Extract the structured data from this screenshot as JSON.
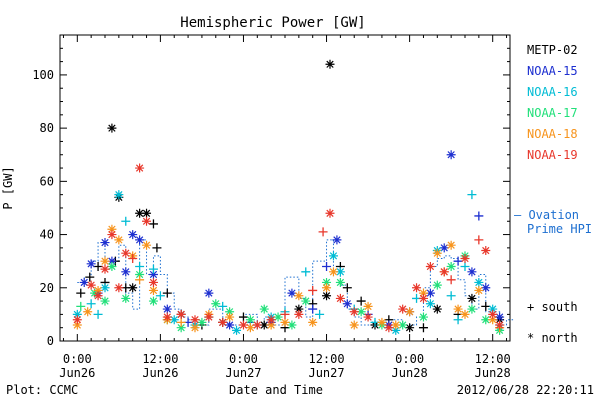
{
  "chart_data": {
    "type": "scatter",
    "title": "Hemispheric Power [GW]",
    "ylabel": "P [GW]",
    "xlabel": "Date and Time",
    "ylim": [
      0,
      115
    ],
    "yticks": [
      0,
      20,
      40,
      60,
      80,
      100
    ],
    "x_range_hours": [
      -2.5,
      62.5
    ],
    "x_ticks": [
      {
        "h": 0,
        "time": "0:00",
        "date": "Jun26"
      },
      {
        "h": 12,
        "time": "12:00",
        "date": "Jun26"
      },
      {
        "h": 24,
        "time": "0:00",
        "date": "Jun27"
      },
      {
        "h": 36,
        "time": "12:00",
        "date": "Jun27"
      },
      {
        "h": 48,
        "time": "0:00",
        "date": "Jun28"
      },
      {
        "h": 60,
        "time": "12:00",
        "date": "Jun28"
      }
    ],
    "series": [
      {
        "name": "METP-02",
        "color": "#000000",
        "points": [
          [
            0.5,
            18,
            "s"
          ],
          [
            1.8,
            24,
            "s"
          ],
          [
            3,
            28,
            "s"
          ],
          [
            4,
            22,
            "s"
          ],
          [
            5,
            80,
            "n"
          ],
          [
            5.5,
            30,
            "s"
          ],
          [
            6,
            54,
            "n"
          ],
          [
            7,
            20,
            "s"
          ],
          [
            8,
            20,
            "n"
          ],
          [
            9,
            48,
            "n"
          ],
          [
            10,
            48,
            "n"
          ],
          [
            11,
            44,
            "s"
          ],
          [
            11.5,
            35,
            "s"
          ],
          [
            13,
            18,
            "s"
          ],
          [
            15,
            10,
            "n"
          ],
          [
            18,
            6,
            "s"
          ],
          [
            21,
            7,
            "n"
          ],
          [
            24,
            9,
            "s"
          ],
          [
            27,
            6,
            "n"
          ],
          [
            30,
            5,
            "s"
          ],
          [
            32,
            12,
            "n"
          ],
          [
            34,
            14,
            "s"
          ],
          [
            36,
            17,
            "n"
          ],
          [
            36.5,
            104,
            "n"
          ],
          [
            38,
            28,
            "s"
          ],
          [
            39,
            20,
            "s"
          ],
          [
            41,
            15,
            "s"
          ],
          [
            43,
            6,
            "n"
          ],
          [
            45,
            8,
            "s"
          ],
          [
            48,
            5,
            "n"
          ],
          [
            50,
            5,
            "s"
          ],
          [
            52,
            12,
            "n"
          ],
          [
            55,
            10,
            "s"
          ],
          [
            57,
            16,
            "n"
          ],
          [
            59,
            13,
            "s"
          ],
          [
            61,
            8,
            "n"
          ]
        ]
      },
      {
        "name": "NOAA-15",
        "color": "#1d2fd0",
        "points": [
          [
            1,
            22,
            "n"
          ],
          [
            2,
            29,
            "n"
          ],
          [
            3,
            18,
            "n"
          ],
          [
            4,
            37,
            "n"
          ],
          [
            5,
            30,
            "n"
          ],
          [
            7,
            26,
            "n"
          ],
          [
            8,
            40,
            "n"
          ],
          [
            9,
            38,
            "n"
          ],
          [
            11,
            25,
            "n"
          ],
          [
            13,
            12,
            "n"
          ],
          [
            16,
            7,
            "s"
          ],
          [
            19,
            18,
            "n"
          ],
          [
            22,
            6,
            "n"
          ],
          [
            25,
            7,
            "s"
          ],
          [
            28,
            7,
            "n"
          ],
          [
            31,
            18,
            "n"
          ],
          [
            34,
            12,
            "s"
          ],
          [
            36,
            28,
            "s"
          ],
          [
            37.5,
            38,
            "n"
          ],
          [
            39,
            14,
            "n"
          ],
          [
            42,
            10,
            "s"
          ],
          [
            45,
            6,
            "n"
          ],
          [
            48,
            11,
            "n"
          ],
          [
            51,
            18,
            "n"
          ],
          [
            53,
            35,
            "n"
          ],
          [
            54,
            70,
            "n"
          ],
          [
            55,
            30,
            "s"
          ],
          [
            57,
            26,
            "n"
          ],
          [
            58,
            47,
            "s"
          ],
          [
            59,
            20,
            "n"
          ],
          [
            61,
            9,
            "n"
          ]
        ]
      },
      {
        "name": "NOAA-16",
        "color": "#00bcd4",
        "points": [
          [
            0,
            10,
            "n"
          ],
          [
            2,
            14,
            "s"
          ],
          [
            3,
            10,
            "s"
          ],
          [
            4,
            20,
            "n"
          ],
          [
            6,
            55,
            "n"
          ],
          [
            7,
            45,
            "s"
          ],
          [
            9,
            28,
            "s"
          ],
          [
            11,
            27,
            "s"
          ],
          [
            12,
            17,
            "s"
          ],
          [
            14,
            8,
            "n"
          ],
          [
            17,
            6,
            "n"
          ],
          [
            19,
            9,
            "s"
          ],
          [
            21,
            13,
            "s"
          ],
          [
            23,
            4,
            "n"
          ],
          [
            26,
            6,
            "s"
          ],
          [
            28,
            9,
            "n"
          ],
          [
            30,
            11,
            "s"
          ],
          [
            33,
            26,
            "s"
          ],
          [
            35,
            10,
            "s"
          ],
          [
            37,
            32,
            "n"
          ],
          [
            38,
            26,
            "n"
          ],
          [
            40,
            12,
            "s"
          ],
          [
            43,
            7,
            "s"
          ],
          [
            46,
            4,
            "n"
          ],
          [
            49,
            16,
            "s"
          ],
          [
            51,
            14,
            "n"
          ],
          [
            52,
            34,
            "n"
          ],
          [
            54,
            17,
            "s"
          ],
          [
            55,
            8,
            "s"
          ],
          [
            56,
            28,
            "s"
          ],
          [
            57,
            55,
            "s"
          ],
          [
            58,
            22,
            "n"
          ],
          [
            60,
            12,
            "n"
          ],
          [
            61,
            5,
            "n"
          ]
        ]
      },
      {
        "name": "NOAA-17",
        "color": "#21e07a",
        "points": [
          [
            0.5,
            13,
            "s"
          ],
          [
            2.5,
            18,
            "n"
          ],
          [
            4,
            15,
            "n"
          ],
          [
            5,
            28,
            "n"
          ],
          [
            7,
            16,
            "n"
          ],
          [
            9,
            25,
            "n"
          ],
          [
            11,
            15,
            "n"
          ],
          [
            13,
            8,
            "n"
          ],
          [
            15,
            5,
            "n"
          ],
          [
            18,
            7,
            "n"
          ],
          [
            20,
            14,
            "n"
          ],
          [
            22,
            11,
            "n"
          ],
          [
            25,
            8,
            "n"
          ],
          [
            27,
            12,
            "n"
          ],
          [
            29,
            9,
            "n"
          ],
          [
            31,
            6,
            "n"
          ],
          [
            33,
            15,
            "n"
          ],
          [
            36,
            22,
            "n"
          ],
          [
            38,
            22,
            "n"
          ],
          [
            41,
            11,
            "n"
          ],
          [
            44,
            6,
            "n"
          ],
          [
            47,
            6,
            "n"
          ],
          [
            50,
            9,
            "n"
          ],
          [
            52,
            21,
            "n"
          ],
          [
            54,
            28,
            "n"
          ],
          [
            56,
            32,
            "n"
          ],
          [
            57,
            12,
            "n"
          ],
          [
            59,
            8,
            "n"
          ],
          [
            61,
            4,
            "n"
          ]
        ]
      },
      {
        "name": "NOAA-18",
        "color": "#f7941d",
        "points": [
          [
            0,
            6,
            "n"
          ],
          [
            1.5,
            11,
            "n"
          ],
          [
            3,
            19,
            "n"
          ],
          [
            4,
            30,
            "n"
          ],
          [
            5,
            42,
            "n"
          ],
          [
            6,
            38,
            "n"
          ],
          [
            8,
            32,
            "n"
          ],
          [
            9,
            23,
            "s"
          ],
          [
            10,
            36,
            "n"
          ],
          [
            11,
            19,
            "n"
          ],
          [
            13,
            8,
            "n"
          ],
          [
            15,
            7,
            "s"
          ],
          [
            17,
            5,
            "n"
          ],
          [
            19,
            10,
            "n"
          ],
          [
            22,
            9,
            "n"
          ],
          [
            25,
            5,
            "n"
          ],
          [
            28,
            6,
            "n"
          ],
          [
            30,
            7,
            "n"
          ],
          [
            32,
            17,
            "n"
          ],
          [
            34,
            7,
            "n"
          ],
          [
            36,
            20,
            "n"
          ],
          [
            37,
            26,
            "n"
          ],
          [
            40,
            6,
            "n"
          ],
          [
            42,
            13,
            "n"
          ],
          [
            44,
            7,
            "n"
          ],
          [
            46,
            6,
            "n"
          ],
          [
            48,
            11,
            "n"
          ],
          [
            50,
            18,
            "n"
          ],
          [
            52,
            33,
            "n"
          ],
          [
            53,
            26,
            "n"
          ],
          [
            54,
            36,
            "n"
          ],
          [
            55,
            12,
            "n"
          ],
          [
            56,
            10,
            "n"
          ],
          [
            58,
            19,
            "n"
          ],
          [
            60,
            8,
            "n"
          ],
          [
            61,
            5,
            "s"
          ]
        ]
      },
      {
        "name": "NOAA-19",
        "color": "#e8382c",
        "points": [
          [
            0,
            8,
            "n"
          ],
          [
            2,
            21,
            "n"
          ],
          [
            3,
            17,
            "n"
          ],
          [
            4,
            27,
            "n"
          ],
          [
            5,
            40,
            "n"
          ],
          [
            6,
            20,
            "n"
          ],
          [
            7,
            33,
            "n"
          ],
          [
            8,
            31,
            "s"
          ],
          [
            9,
            65,
            "n"
          ],
          [
            10,
            45,
            "n"
          ],
          [
            11,
            22,
            "n"
          ],
          [
            13,
            9,
            "n"
          ],
          [
            15,
            10,
            "n"
          ],
          [
            17,
            8,
            "n"
          ],
          [
            19,
            9,
            "n"
          ],
          [
            21,
            7,
            "n"
          ],
          [
            24,
            6,
            "n"
          ],
          [
            26,
            6,
            "n"
          ],
          [
            28,
            8,
            "n"
          ],
          [
            30,
            10,
            "s"
          ],
          [
            32,
            10,
            "n"
          ],
          [
            34,
            19,
            "s"
          ],
          [
            35.5,
            41,
            "s"
          ],
          [
            36.5,
            48,
            "n"
          ],
          [
            38,
            16,
            "n"
          ],
          [
            40,
            11,
            "n"
          ],
          [
            42,
            9,
            "n"
          ],
          [
            45,
            5,
            "n"
          ],
          [
            47,
            12,
            "n"
          ],
          [
            49,
            20,
            "n"
          ],
          [
            50,
            16,
            "n"
          ],
          [
            51,
            28,
            "n"
          ],
          [
            53,
            26,
            "n"
          ],
          [
            54,
            23,
            "s"
          ],
          [
            56,
            31,
            "n"
          ],
          [
            58,
            38,
            "s"
          ],
          [
            59,
            34,
            "n"
          ],
          [
            60,
            10,
            "n"
          ],
          [
            61,
            6,
            "n"
          ]
        ]
      }
    ],
    "ovation_prime": {
      "name": "Ovation Prime HPI",
      "color": "#1d6fd0",
      "points": [
        [
          0,
          22
        ],
        [
          1,
          24
        ],
        [
          2,
          30
        ],
        [
          3,
          37
        ],
        [
          4,
          27
        ],
        [
          5,
          30
        ],
        [
          6,
          36
        ],
        [
          7,
          18
        ],
        [
          8,
          12
        ],
        [
          9,
          38
        ],
        [
          10,
          25
        ],
        [
          11,
          32
        ],
        [
          12,
          25
        ],
        [
          13,
          18
        ],
        [
          14,
          12
        ],
        [
          15,
          9
        ],
        [
          16,
          8
        ],
        [
          17,
          6
        ],
        [
          18,
          6
        ],
        [
          19,
          12
        ],
        [
          20,
          12
        ],
        [
          21,
          9
        ],
        [
          22,
          6
        ],
        [
          23,
          6
        ],
        [
          24,
          10
        ],
        [
          25,
          10
        ],
        [
          26,
          6
        ],
        [
          27,
          9
        ],
        [
          28,
          6
        ],
        [
          29,
          6
        ],
        [
          30,
          24
        ],
        [
          31,
          24
        ],
        [
          32,
          16
        ],
        [
          33,
          9
        ],
        [
          34,
          30
        ],
        [
          35,
          30
        ],
        [
          36,
          38
        ],
        [
          37,
          26
        ],
        [
          38,
          21
        ],
        [
          39,
          12
        ],
        [
          40,
          9
        ],
        [
          41,
          6
        ],
        [
          42,
          6
        ],
        [
          43,
          6
        ],
        [
          44,
          6
        ],
        [
          45,
          8
        ],
        [
          46,
          8
        ],
        [
          47,
          6
        ],
        [
          48,
          6
        ],
        [
          49,
          9
        ],
        [
          50,
          20
        ],
        [
          51,
          28
        ],
        [
          52,
          31
        ],
        [
          53,
          32
        ],
        [
          54,
          31
        ],
        [
          55,
          23
        ],
        [
          56,
          17
        ],
        [
          57,
          12
        ],
        [
          58,
          25
        ],
        [
          59,
          11
        ],
        [
          60,
          11
        ],
        [
          61,
          6
        ],
        [
          62,
          8
        ]
      ]
    },
    "legend": {
      "placement": "right",
      "items": [
        "METP-02",
        "NOAA-15",
        "NOAA-16",
        "NOAA-17",
        "NOAA-18",
        "NOAA-19"
      ],
      "ovation_label": "— Ovation",
      "ovation_label2": "Prime HPI",
      "south_label": "+ south",
      "north_label": "* north"
    }
  },
  "footer": {
    "left": "Plot: CCMC",
    "center": "Date and Time",
    "right": "2012/06/28 22:20:11"
  }
}
